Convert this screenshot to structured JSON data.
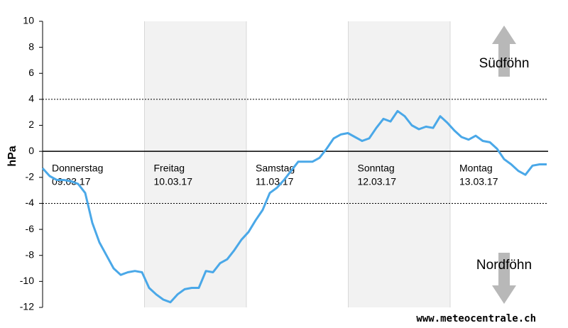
{
  "chart_data": {
    "type": "line",
    "y_label": "hPa",
    "values": [
      -1.3,
      -1.9,
      -2.2,
      -2.2,
      -2.3,
      -2.5,
      -3.2,
      -5.5,
      -7,
      -8,
      -9,
      -9.5,
      -9.3,
      -9.2,
      -9.3,
      -10.5,
      -11,
      -11.4,
      -11.6,
      -11,
      -10.6,
      -10.5,
      -10.5,
      -9.2,
      -9.3,
      -8.6,
      -8.3,
      -7.6,
      -6.8,
      -6.2,
      -5.3,
      -4.5,
      -3.2,
      -2.8,
      -2.2,
      -1.5,
      -0.8,
      -0.8,
      -0.8,
      -0.5,
      0.2,
      1,
      1.3,
      1.4,
      1.1,
      0.8,
      1,
      1.8,
      2.5,
      2.3,
      3.1,
      2.7,
      2,
      1.7,
      1.9,
      1.8,
      2.7,
      2.2,
      1.6,
      1.1,
      0.9,
      1.2,
      0.8,
      0.7,
      0.2,
      -0.6,
      -1,
      -1.5,
      -1.8,
      -1.1,
      -1,
      -1
    ],
    "color": "#4aa8e8",
    "days": [
      {
        "name": "Donnerstag",
        "date": "09.03.17"
      },
      {
        "name": "Freitag",
        "date": "10.03.17"
      },
      {
        "name": "Samstag",
        "date": "11.03.17"
      },
      {
        "name": "Sonntag",
        "date": "12.03.17"
      },
      {
        "name": "Montag",
        "date": "13.03.17"
      }
    ],
    "ylim": [
      -12,
      10
    ],
    "yticks": [
      -12,
      -10,
      -8,
      -6,
      -4,
      -2,
      0,
      2,
      4,
      6,
      8,
      10
    ],
    "reference_lines": [
      4,
      -4
    ],
    "annotations": {
      "upper": "Südföhn",
      "lower": "Nordföhn"
    },
    "source": "www.meteocentrale.ch"
  }
}
